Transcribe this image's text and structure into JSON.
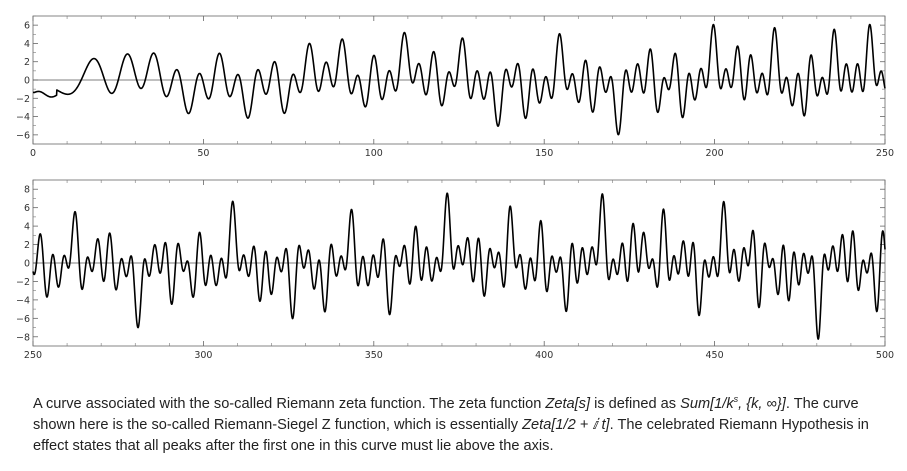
{
  "chart_data": [
    {
      "type": "line",
      "title": "",
      "xlabel": "",
      "ylabel": "",
      "xlim": [
        0,
        250
      ],
      "ylim": [
        -7,
        7
      ],
      "x_ticks": [
        0,
        50,
        100,
        150,
        200,
        250
      ],
      "y_ticks": [
        -6,
        -4,
        -2,
        0,
        2,
        4,
        6
      ],
      "grid": false,
      "function": "Riemann-Siegel Z(t)",
      "notable_points": [
        {
          "x": 18,
          "y": 2.3
        },
        {
          "x": 28,
          "y": 2.8
        },
        {
          "x": 35,
          "y": 2.8
        },
        {
          "x": 53,
          "y": -3.7
        },
        {
          "x": 63,
          "y": -4.2
        },
        {
          "x": 81,
          "y": 3.9
        },
        {
          "x": 110,
          "y": 5.2
        },
        {
          "x": 127,
          "y": 4.6
        },
        {
          "x": 136,
          "y": -5.0
        },
        {
          "x": 156,
          "y": 5.4
        },
        {
          "x": 172,
          "y": -5.9
        },
        {
          "x": 200,
          "y": 6.0
        },
        {
          "x": 218,
          "y": 5.5
        },
        {
          "x": 235,
          "y": 5.6
        },
        {
          "x": 246,
          "y": 6.0
        }
      ]
    },
    {
      "type": "line",
      "title": "",
      "xlabel": "",
      "ylabel": "",
      "xlim": [
        250,
        500
      ],
      "ylim": [
        -9,
        9
      ],
      "x_ticks": [
        250,
        300,
        350,
        400,
        450,
        500
      ],
      "y_ticks": [
        -8,
        -6,
        -4,
        -2,
        0,
        2,
        4,
        6,
        8
      ],
      "grid": false,
      "function": "Riemann-Siegel Z(t)",
      "notable_points": [
        {
          "x": 262,
          "y": 5.6
        },
        {
          "x": 281,
          "y": -6.8
        },
        {
          "x": 309,
          "y": 6.7
        },
        {
          "x": 326,
          "y": -6.0
        },
        {
          "x": 372,
          "y": 7.6
        },
        {
          "x": 417,
          "y": 7.5
        },
        {
          "x": 455,
          "y": 6.7
        },
        {
          "x": 481,
          "y": -8.0
        }
      ]
    }
  ],
  "caption": {
    "part1": "A curve associated with the so-called Riemann zeta function. The zeta function ",
    "zeta_s": "Zeta[s]",
    "part2": " is defined as ",
    "sum_a": "Sum[1/k",
    "sum_sup": "s",
    "sum_b": ", {k, ∞}]",
    "part3": ". The curve shown here is the so-called Riemann-Siegel Z function, which is essentially ",
    "zeta_half": "Zeta[1/2 + ⅈ t]",
    "part4": ". The celebrated Riemann Hypothesis in effect states that all peaks after the first one in this curve must lie above the axis."
  }
}
